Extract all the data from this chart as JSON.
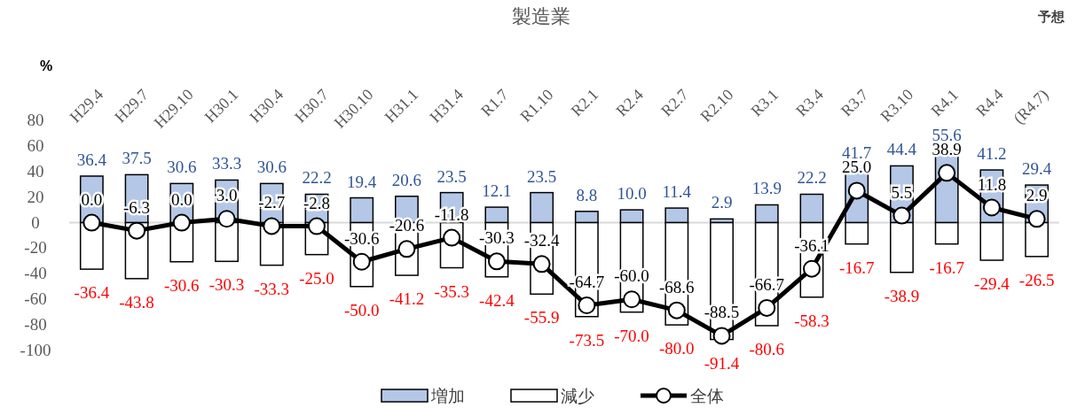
{
  "chart_data": {
    "type": "bar",
    "title": "製造業",
    "ylabel": "%",
    "stacked": true,
    "legend": "bottom",
    "categories": [
      "H29.4",
      "H29.7",
      "H29.10",
      "H30.1",
      "H30.4",
      "H30.7",
      "H30.10",
      "H31.1",
      "H31.4",
      "R1.7",
      "R1.10",
      "R2.1",
      "R2.4",
      "R2.7",
      "R2.10",
      "R3.1",
      "R3.4",
      "R3.7",
      "R3.10",
      "R4.1",
      "R4.4",
      "(R4.7)"
    ],
    "ylim": [
      -100,
      80
    ],
    "yticks": [
      -100,
      -80,
      -60,
      -40,
      -20,
      0,
      20,
      40,
      60,
      80
    ],
    "ref_lines": [
      {
        "axis": "y",
        "value": 0,
        "color": "#d9d9d9"
      }
    ],
    "annotations": [
      "予想"
    ],
    "series": [
      {
        "name": "増加",
        "type": "bar",
        "color": "#b4c7e7",
        "values": [
          36.4,
          37.5,
          30.6,
          33.3,
          30.6,
          22.2,
          19.4,
          20.6,
          23.5,
          12.1,
          23.5,
          8.8,
          10.0,
          11.4,
          2.9,
          13.9,
          22.2,
          41.7,
          44.4,
          55.6,
          41.2,
          29.4
        ],
        "value_labels": [
          "36.4",
          "37.5",
          "30.6",
          "33.3",
          "30.6",
          "22.2",
          "19.4",
          "20.6",
          "23.5",
          "12.1",
          "23.5",
          "8.8",
          "10.0",
          "11.4",
          "2.9",
          "13.9",
          "22.2",
          "41.7",
          "44.4",
          "55.6",
          "41.2",
          "29.4"
        ]
      },
      {
        "name": "減少",
        "type": "bar",
        "color": "#ffffff",
        "values": [
          -36.4,
          -43.8,
          -30.6,
          -30.3,
          -33.3,
          -25.0,
          -50.0,
          -41.2,
          -35.3,
          -42.4,
          -55.9,
          -73.5,
          -70.0,
          -80.0,
          -91.4,
          -80.6,
          -58.3,
          -16.7,
          -38.9,
          -16.7,
          -29.4,
          -26.5
        ],
        "value_labels": [
          "-36.4",
          "-43.8",
          "-30.6",
          "-30.3",
          "-33.3",
          "-25.0",
          "-50.0",
          "-41.2",
          "-35.3",
          "-42.4",
          "-55.9",
          "-73.5",
          "-70.0",
          "-80.0",
          "-91.4",
          "-80.6",
          "-58.3",
          "-16.7",
          "-38.9",
          "-16.7",
          "-29.4",
          "-26.5"
        ]
      },
      {
        "name": "全体",
        "type": "line",
        "color": "#000000",
        "marker": "circle",
        "line_style": "solid",
        "values": [
          0.0,
          -6.3,
          0.0,
          3.0,
          -2.7,
          -2.8,
          -30.6,
          -20.6,
          -11.8,
          -30.3,
          -32.4,
          -64.7,
          -60.0,
          -68.6,
          -88.5,
          -66.7,
          -36.1,
          25.0,
          5.5,
          38.9,
          11.8,
          2.9
        ],
        "value_labels": [
          "0.0",
          "-6.3",
          "0.0",
          "3.0",
          "-2.7",
          "-2.8",
          "-30.6",
          "-20.6",
          "-11.8",
          "-30.3",
          "-32.4",
          "-64.7",
          "-60.0",
          "-68.6",
          "-88.5",
          "-66.7",
          "-36.1",
          "25.0",
          "5.5",
          "38.9",
          "11.8",
          "2.9"
        ]
      }
    ]
  }
}
